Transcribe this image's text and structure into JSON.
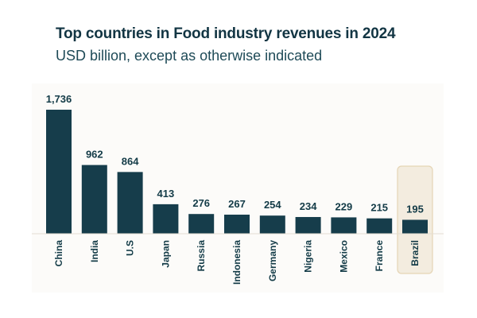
{
  "chart_data": {
    "type": "bar",
    "title": "Top countries in Food industry revenues in 2024",
    "subtitle": "USD billion, except as otherwise indicated",
    "categories": [
      "China",
      "India",
      "U.S",
      "Japan",
      "Russia",
      "Indonesia",
      "Germany",
      "Nigeria",
      "Mexico",
      "France",
      "Brazil"
    ],
    "values": [
      1736,
      962,
      864,
      413,
      276,
      267,
      254,
      234,
      229,
      215,
      195
    ],
    "value_labels": [
      "1,736",
      "962",
      "864",
      "413",
      "276",
      "267",
      "254",
      "234",
      "229",
      "215",
      "195"
    ],
    "highlight": "Brazil",
    "bar_color": "#163d4b",
    "highlight_fill": "#f3ecdf",
    "highlight_stroke": "#e5d5b5",
    "background_color": "#fcfbf9",
    "grid": false
  }
}
